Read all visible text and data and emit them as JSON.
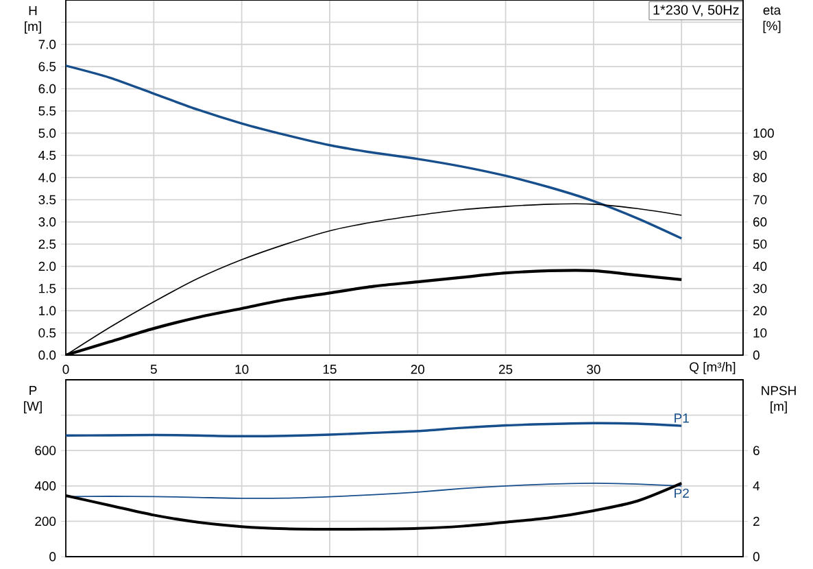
{
  "chart_data": [
    {
      "type": "line",
      "title": "1*230 V, 50Hz",
      "xlabel": "Q [m³/h]",
      "ylabel": "H [m]",
      "y2label": "eta [%]",
      "x": [
        0,
        2.5,
        5,
        7.5,
        10,
        12.5,
        15,
        17.5,
        20,
        22.5,
        25,
        27.5,
        30,
        32.5,
        35
      ],
      "xlim": [
        0,
        38.5
      ],
      "xticks": [
        0,
        5,
        10,
        15,
        20,
        25,
        30,
        {
          "value": 35,
          "label": null
        }
      ],
      "ylim": [
        0,
        8
      ],
      "yticks": [
        {
          "value": 0,
          "label": "0.0"
        },
        {
          "value": 0.5,
          "label": "0.5"
        },
        {
          "value": 1,
          "label": "1.0"
        },
        {
          "value": 1.5,
          "label": "1.5"
        },
        {
          "value": 2,
          "label": "2.0"
        },
        {
          "value": 2.5,
          "label": "2.5"
        },
        {
          "value": 3,
          "label": "3.0"
        },
        {
          "value": 3.5,
          "label": "3.5"
        },
        {
          "value": 4,
          "label": "4.0"
        },
        {
          "value": 4.5,
          "label": "4.5"
        },
        {
          "value": 5,
          "label": "5.0"
        },
        {
          "value": 5.5,
          "label": "5.5"
        },
        {
          "value": 6,
          "label": "6.0"
        },
        {
          "value": 6.5,
          "label": "6.5"
        },
        {
          "value": 7,
          "label": "7.0"
        },
        {
          "value": 7.5,
          "label": null
        }
      ],
      "y2lim": [
        0,
        160
      ],
      "y2ticks": [
        0,
        10,
        20,
        30,
        40,
        50,
        60,
        70,
        80,
        90,
        100
      ],
      "grid": true,
      "series": [
        {
          "color": "#174e8c",
          "values": [
            6.52,
            6.25,
            5.89,
            5.53,
            5.22,
            4.96,
            4.73,
            4.56,
            4.42,
            4.25,
            4.04,
            3.78,
            3.47,
            3.08,
            2.63
          ]
        },
        {
          "color": "#000000",
          "axis": "y2",
          "values": [
            0,
            12.5,
            24,
            34.5,
            43,
            50,
            56,
            60,
            63,
            65.5,
            67,
            68,
            68,
            66,
            63
          ]
        },
        {
          "color": "#000000",
          "axis": "y2",
          "values": [
            0,
            6,
            12,
            17,
            21,
            25,
            28,
            31,
            33,
            35,
            37,
            38,
            38,
            36,
            34
          ]
        }
      ]
    },
    {
      "type": "line",
      "ylabel": "P [W]",
      "y2label": "NPSH [m]",
      "x": [
        0,
        2.5,
        5,
        7.5,
        10,
        12.5,
        15,
        17.5,
        20,
        22.5,
        25,
        27.5,
        30,
        32.5,
        35
      ],
      "xlim": [
        0,
        38.5
      ],
      "xticks": [
        0,
        5,
        10,
        15,
        20,
        25,
        30,
        35
      ],
      "ylim": [
        0,
        1000
      ],
      "yticks": [
        0,
        200,
        400,
        600,
        {
          "value": 800,
          "label": null
        }
      ],
      "y2lim": [
        0,
        10
      ],
      "y2ticks": [
        0,
        2,
        4,
        6,
        {
          "value": 8,
          "label": null
        }
      ],
      "tick_labels": "y",
      "grid": true,
      "series": [
        {
          "name": "P1",
          "color": "#174e8c",
          "values": [
            685,
            686,
            688,
            685,
            681,
            683,
            690,
            700,
            710,
            728,
            742,
            750,
            755,
            752,
            740
          ]
        },
        {
          "name": "P2",
          "color": "#174e8c",
          "values": [
            340,
            341,
            340,
            335,
            330,
            331,
            339,
            350,
            365,
            385,
            400,
            410,
            415,
            410,
            400
          ]
        },
        {
          "color": "#000000",
          "axis": "y2",
          "values": [
            3.45,
            2.9,
            2.35,
            1.95,
            1.7,
            1.58,
            1.55,
            1.56,
            1.6,
            1.72,
            1.95,
            2.2,
            2.6,
            3.15,
            4.15
          ]
        }
      ]
    }
  ]
}
